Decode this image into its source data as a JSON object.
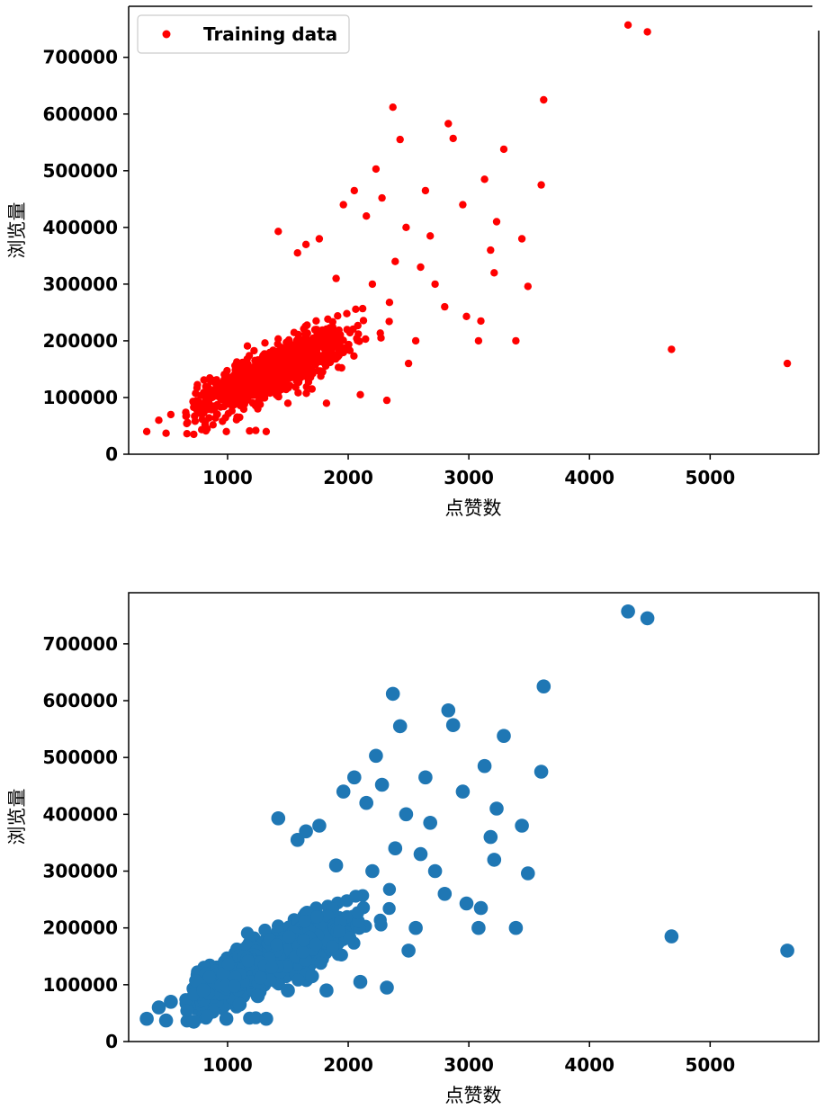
{
  "chart_data": [
    {
      "type": "scatter",
      "xlabel": "点赞数",
      "ylabel": "浏览量",
      "xlim": [
        180,
        5900
      ],
      "ylim": [
        0,
        790000
      ],
      "xticks": [
        "1000",
        "2000",
        "3000",
        "4000",
        "5000"
      ],
      "yticks": [
        "0",
        "100000",
        "200000",
        "300000",
        "400000",
        "500000",
        "600000",
        "700000"
      ],
      "grid": false,
      "legend": {
        "placement": "top-left",
        "entries": [
          "Training data"
        ]
      },
      "series": [
        {
          "name": "Training data",
          "color": "#ff0000",
          "marker": "small-dot",
          "x": [
            330,
            430,
            490,
            530,
            720,
            800,
            990,
            1100,
            1250,
            1320,
            1420,
            1500,
            1580,
            1650,
            1700,
            1760,
            1820,
            1900,
            1960,
            2050,
            2100,
            2150,
            2200,
            2230,
            2280,
            2320,
            2370,
            2390,
            2430,
            2480,
            2500,
            2560,
            2600,
            2640,
            2680,
            2720,
            2800,
            2830,
            2870,
            2950,
            2980,
            3080,
            3100,
            3130,
            3180,
            3210,
            3230,
            3290,
            3390,
            3440,
            3490,
            3600,
            3620,
            4320,
            4480,
            4680,
            5640
          ],
          "y": [
            40000,
            60000,
            37000,
            70000,
            35000,
            90000,
            40000,
            65000,
            80000,
            40000,
            393000,
            90000,
            355000,
            370000,
            115000,
            380000,
            90000,
            310000,
            440000,
            465000,
            105000,
            420000,
            300000,
            503000,
            452000,
            95000,
            612000,
            340000,
            555000,
            400000,
            160000,
            200000,
            330000,
            465000,
            385000,
            300000,
            260000,
            583000,
            557000,
            440000,
            243000,
            200000,
            235000,
            485000,
            360000,
            320000,
            410000,
            538000,
            200000,
            380000,
            296000,
            475000,
            625000,
            757000,
            745000,
            185000,
            160000
          ]
        }
      ]
    },
    {
      "type": "scatter",
      "xlabel": "点赞数",
      "ylabel": "浏览量",
      "xlim": [
        180,
        5900
      ],
      "ylim": [
        0,
        790000
      ],
      "xticks": [
        "1000",
        "2000",
        "3000",
        "4000",
        "5000"
      ],
      "yticks": [
        "0",
        "100000",
        "200000",
        "300000",
        "400000",
        "500000",
        "600000",
        "700000"
      ],
      "grid": false,
      "series": [
        {
          "color": "#1f77b4",
          "marker": "large-dot",
          "x": [
            330,
            430,
            490,
            530,
            720,
            800,
            990,
            1100,
            1250,
            1320,
            1420,
            1500,
            1580,
            1650,
            1700,
            1760,
            1820,
            1900,
            1960,
            2050,
            2100,
            2150,
            2200,
            2230,
            2280,
            2320,
            2370,
            2390,
            2430,
            2480,
            2500,
            2560,
            2600,
            2640,
            2680,
            2720,
            2800,
            2830,
            2870,
            2950,
            2980,
            3080,
            3100,
            3130,
            3180,
            3210,
            3230,
            3290,
            3390,
            3440,
            3490,
            3600,
            3620,
            4320,
            4480,
            4680,
            5640
          ],
          "y": [
            40000,
            60000,
            37000,
            70000,
            35000,
            90000,
            40000,
            65000,
            80000,
            40000,
            393000,
            90000,
            355000,
            370000,
            115000,
            380000,
            90000,
            310000,
            440000,
            465000,
            105000,
            420000,
            300000,
            503000,
            452000,
            95000,
            612000,
            340000,
            555000,
            400000,
            160000,
            200000,
            330000,
            465000,
            385000,
            300000,
            260000,
            583000,
            557000,
            440000,
            243000,
            200000,
            235000,
            485000,
            360000,
            320000,
            410000,
            538000,
            200000,
            380000,
            296000,
            475000,
            625000,
            757000,
            745000,
            185000,
            160000
          ]
        }
      ]
    }
  ]
}
